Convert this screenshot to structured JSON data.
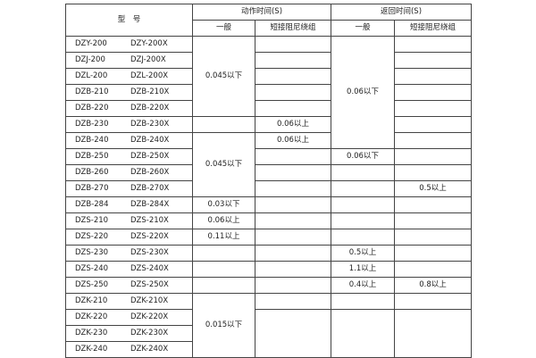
{
  "header": {
    "model": "型　号",
    "action_time": "动作时间(S)",
    "return_time": "返回时间(S)",
    "general": "一般",
    "short_damping": "短接阻尼绕组"
  },
  "rows": [
    {
      "a": "DZY-200",
      "b": "DZY-200X"
    },
    {
      "a": "DZJ-200",
      "b": "DZJ-200X"
    },
    {
      "a": "DZL-200",
      "b": "DZL-200X"
    },
    {
      "a": "DZB-210",
      "b": "DZB-210X"
    },
    {
      "a": "DZB-220",
      "b": "DZB-220X"
    },
    {
      "a": "DZB-230",
      "b": "DZB-230X"
    },
    {
      "a": "DZB-240",
      "b": "DZB-240X"
    },
    {
      "a": "DZB-250",
      "b": "DZB-250X"
    },
    {
      "a": "DZB-260",
      "b": "DZB-260X"
    },
    {
      "a": "DZB-270",
      "b": "DZB-270X"
    },
    {
      "a": "DZB-284",
      "b": "DZB-284X"
    },
    {
      "a": "DZS-210",
      "b": "DZS-210X"
    },
    {
      "a": "DZS-220",
      "b": "DZS-220X"
    },
    {
      "a": "DZS-230",
      "b": "DZS-230X"
    },
    {
      "a": "DZS-240",
      "b": "DZS-240X"
    },
    {
      "a": "DZS-250",
      "b": "DZS-250X"
    },
    {
      "a": "DZK-210",
      "b": "DZK-210X"
    },
    {
      "a": "DZK-220",
      "b": "DZK-220X"
    },
    {
      "a": "DZK-230",
      "b": "DZK-230X"
    },
    {
      "a": "DZK-240",
      "b": "DZK-240X"
    }
  ],
  "values": {
    "act_gen_1": "0.045以下",
    "act_gen_2": "0.045以下",
    "act_gen_dzb284": "0.03以下",
    "act_gen_dzs210": "0.06以上",
    "act_gen_dzs220": "0.11以上",
    "act_gen_dzk": "0.015以下",
    "act_short_dzb230": "0.06以上",
    "act_short_dzb240": "0.06以上",
    "ret_gen_1": "0.06以下",
    "ret_gen_dzb250": "0.06以下",
    "ret_gen_dzs230": "0.5以上",
    "ret_gen_dzs240": "1.1以上",
    "ret_gen_dzs250": "0.4以上",
    "ret_short_dzb270": "0.5以上",
    "ret_short_dzs250": "0.8以上"
  }
}
